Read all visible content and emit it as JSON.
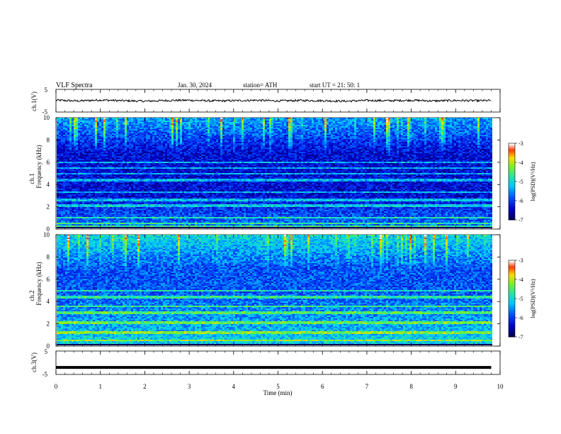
{
  "header": {
    "title": "VLF  Spectra",
    "date": "Jan. 30, 2024",
    "station": "station= ATH",
    "start": "start  UT  =    21: 50: 1"
  },
  "chart_data": [
    {
      "type": "line",
      "name": "ch1-waveform",
      "ylabel": "ch.1(V)",
      "ylim": [
        -5,
        5
      ],
      "y_ticks": [
        "5",
        "-5"
      ],
      "x": [
        0,
        0.5,
        1,
        1.5,
        2,
        2.5,
        3,
        3.5,
        4,
        4.5,
        5,
        5.5,
        6,
        6.5,
        7,
        7.5,
        8,
        8.5,
        9,
        9.5,
        9.8
      ],
      "values": [
        0.2,
        -0.1,
        0.3,
        0.0,
        -0.2,
        0.1,
        0.2,
        -0.1,
        0.0,
        0.2,
        -0.1,
        0.1,
        0.0,
        -0.2,
        0.1,
        0.0,
        0.2,
        -0.1,
        0.1,
        0.0,
        0.1
      ]
    },
    {
      "type": "heatmap",
      "name": "ch1-spectrogram",
      "ylabel": "ch.1",
      "ylabel2": "Frequency (kHz)",
      "y_ticks": [
        "0",
        "2",
        "4",
        "6",
        "8",
        "10"
      ],
      "ylim": [
        0,
        10
      ],
      "colorbar": {
        "label": "log(PSD)(V²/Hz)",
        "ticks": [
          "-3",
          "-4",
          "-5",
          "-6",
          "-7"
        ],
        "range": [
          -7,
          -3
        ]
      },
      "bands_khz": [
        0.2,
        0.5,
        1.0,
        2.0,
        2.2,
        2.6,
        3.3,
        4.4,
        5.0,
        5.5,
        6.0
      ]
    },
    {
      "type": "heatmap",
      "name": "ch2-spectrogram",
      "ylabel": "ch.2",
      "ylabel2": "Frequency (kHz)",
      "y_ticks": [
        "0",
        "2",
        "4",
        "6",
        "8",
        "10"
      ],
      "ylim": [
        0,
        10
      ],
      "colorbar": {
        "label": "log(PSD)(V²/Hz)",
        "ticks": [
          "-3",
          "-4",
          "-5",
          "-6",
          "-7"
        ],
        "range": [
          -7,
          -3
        ]
      },
      "bands_khz": [
        0.5,
        1.2,
        2.0,
        2.2,
        3.0,
        3.6,
        4.4,
        5.0
      ]
    },
    {
      "type": "line",
      "name": "ch3-waveform",
      "ylabel": "ch.3(V)",
      "ylim": [
        -5,
        5
      ],
      "y_ticks": [
        "5",
        "-5"
      ],
      "x": [
        0,
        9.8
      ],
      "values": [
        -2,
        -2
      ]
    }
  ],
  "x_axis": {
    "label": "Time  (min)",
    "ticks": [
      "0",
      "1",
      "2",
      "3",
      "4",
      "5",
      "6",
      "7",
      "8",
      "9",
      "10"
    ],
    "range": [
      0,
      10
    ]
  }
}
